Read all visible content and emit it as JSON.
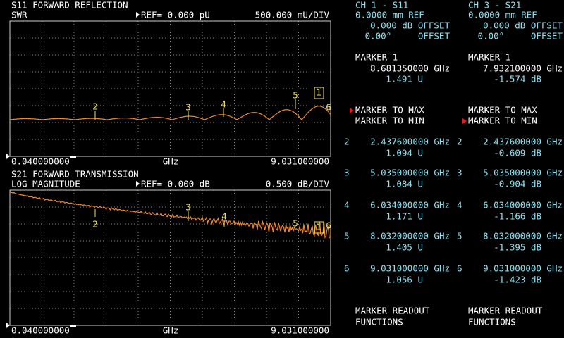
{
  "plots": [
    {
      "title": "S11 FORWARD REFLECTION",
      "format": "SWR",
      "ref": "REF= 0.000 pU",
      "scale": "500.000 mU/DIV",
      "start": "0.040000000",
      "unit": "GHz",
      "stop": "9.031000000",
      "markers": [
        "2",
        "3",
        "4",
        "5",
        "1",
        "6"
      ]
    },
    {
      "title": "S21 FORWARD TRANSMISSION",
      "format": "LOG MAGNITUDE",
      "ref": "REF= 0.000 dB",
      "scale": "0.500 dB/DIV",
      "start": "0.040000000",
      "unit": "GHz",
      "stop": "9.031000000",
      "markers": [
        "2",
        "3",
        "4",
        "5",
        "1",
        "6"
      ]
    }
  ],
  "channels": [
    {
      "header": "CH 1 - S11",
      "ref": "0.0000 mm REF",
      "offset_db": "0.000 dB OFFSET",
      "offset_deg": "0.00°     OFFSET",
      "marker_title": "MARKER 1",
      "marker_freq": "8.681350000 GHz",
      "marker_value": "1.491 U",
      "menu": [
        "MARKER TO MAX",
        "MARKER TO MIN"
      ],
      "active_menu": 0,
      "readout": [
        "MARKER READOUT",
        "FUNCTIONS"
      ]
    },
    {
      "header": "CH 3 - S21",
      "ref": "0.0000 mm REF",
      "offset_db": "0.000 dB OFFSET",
      "offset_deg": "0.00°     OFFSET",
      "marker_title": "MARKER 1",
      "marker_freq": "7.932100000 GHz",
      "marker_value": "-1.574 dB",
      "menu": [
        "MARKER TO MAX",
        "MARKER TO MIN"
      ],
      "active_menu": 1,
      "readout": [
        "MARKER READOUT",
        "FUNCTIONS"
      ]
    }
  ],
  "marker_table": [
    [
      {
        "id": "2",
        "freq": "2.437600000 GHz",
        "value": "1.094 U"
      },
      {
        "id": "2",
        "freq": "2.437600000 GHz",
        "value": "-0.609 dB"
      }
    ],
    [
      {
        "id": "3",
        "freq": "5.035000000 GHz",
        "value": "1.084 U"
      },
      {
        "id": "3",
        "freq": "5.035000000 GHz",
        "value": "-0.904 dB"
      }
    ],
    [
      {
        "id": "4",
        "freq": "6.034000000 GHz",
        "value": "1.171 U"
      },
      {
        "id": "4",
        "freq": "6.034000000 GHz",
        "value": "-1.166 dB"
      }
    ],
    [
      {
        "id": "5",
        "freq": "8.032000000 GHz",
        "value": "1.405 U"
      },
      {
        "id": "5",
        "freq": "8.032000000 GHz",
        "value": "-1.395 dB"
      }
    ],
    [
      {
        "id": "6",
        "freq": "9.031000000 GHz",
        "value": "1.056 U"
      },
      {
        "id": "6",
        "freq": "9.031000000 GHz",
        "value": "-1.423 dB"
      }
    ]
  ]
}
